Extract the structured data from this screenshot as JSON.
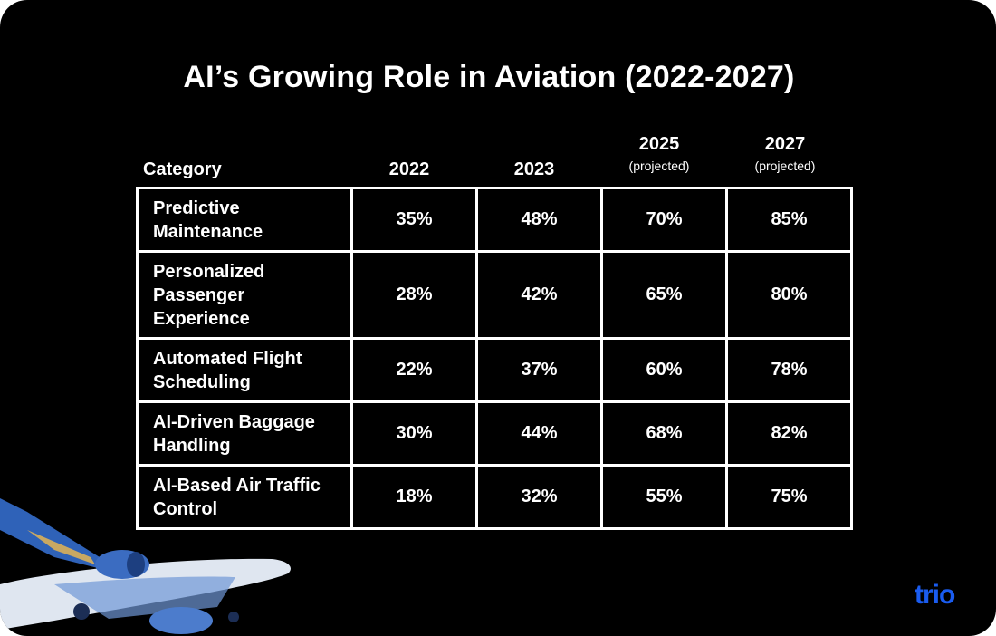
{
  "title": "AI’s Growing Role in Aviation (2022-2027)",
  "logo": "trio",
  "chart_data": {
    "type": "table",
    "title": "AI’s Growing Role in Aviation (2022-2027)",
    "columns": [
      {
        "label": "Category",
        "sub": ""
      },
      {
        "label": "2022",
        "sub": ""
      },
      {
        "label": "2023",
        "sub": ""
      },
      {
        "label": "2025",
        "sub": "(projected)"
      },
      {
        "label": "2027",
        "sub": "(projected)"
      }
    ],
    "rows": [
      {
        "category": "Predictive Maintenance",
        "values": [
          "35%",
          "48%",
          "70%",
          "85%"
        ]
      },
      {
        "category": "Personalized Passenger Experience",
        "values": [
          "28%",
          "42%",
          "65%",
          "80%"
        ]
      },
      {
        "category": "Automated Flight Scheduling",
        "values": [
          "22%",
          "37%",
          "60%",
          "78%"
        ]
      },
      {
        "category": "AI-Driven Baggage Handling",
        "values": [
          "30%",
          "44%",
          "68%",
          "82%"
        ]
      },
      {
        "category": "AI-Based Air Traffic Control",
        "values": [
          "18%",
          "32%",
          "55%",
          "75%"
        ]
      }
    ]
  }
}
